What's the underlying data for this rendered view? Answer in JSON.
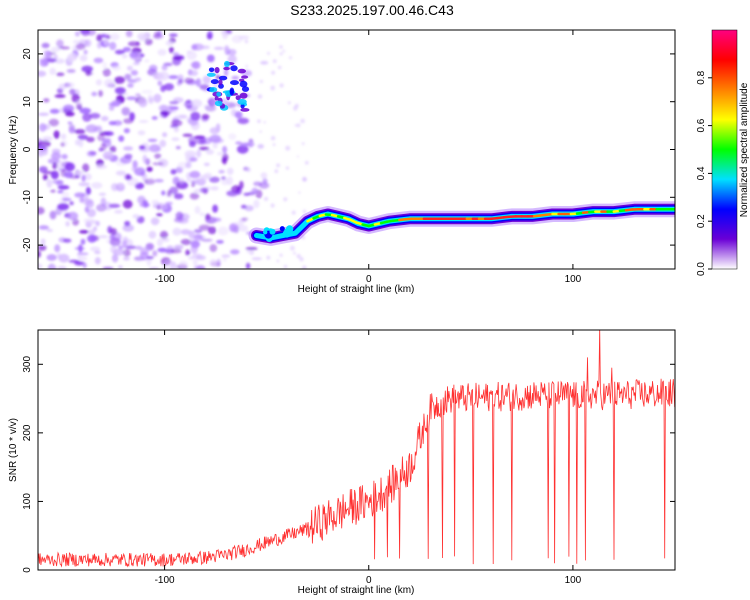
{
  "title": "S233.2025.197.00.46.C43",
  "chart_data": [
    {
      "type": "heatmap",
      "xlabel": "Height of straight line (km)",
      "ylabel": "Frequency (Hz)",
      "xlim": [
        -162,
        150
      ],
      "ylim": [
        -25,
        25
      ],
      "xticks": [
        "-100",
        "0",
        "100"
      ],
      "yticks": [
        "20",
        "10",
        "0",
        "-10",
        "-20"
      ],
      "colorbar": {
        "label": "Normalized spectral amplitude",
        "range": [
          0,
          1
        ],
        "ticks": [
          "0.0",
          "0.2",
          "0.4",
          "0.6",
          "0.8"
        ],
        "colors": [
          "#ffffff",
          "#6a00d6",
          "#0000ff",
          "#00e0ff",
          "#00ff00",
          "#ffff00",
          "#ff8000",
          "#ff0000",
          "#ff0080"
        ]
      },
      "ridge": {
        "x": [
          -55,
          -48,
          -42,
          -36,
          -30,
          -25,
          -20,
          -15,
          -10,
          -5,
          0,
          5,
          10,
          20,
          30,
          40,
          50,
          60,
          70,
          80,
          90,
          100,
          110,
          120,
          130,
          140,
          150
        ],
        "freq": [
          -18,
          -18.5,
          -18,
          -17.5,
          -15,
          -14,
          -13.5,
          -14,
          -14.5,
          -15.5,
          -16,
          -15.5,
          -15,
          -14.5,
          -14.5,
          -14.5,
          -14.5,
          -14.5,
          -14,
          -14,
          -13.5,
          -13.5,
          -13,
          -13,
          -12.5,
          -12.5,
          -12.5
        ]
      },
      "blob": {
        "x": [
          -78,
          -60
        ],
        "freq": [
          8,
          18
        ]
      },
      "noise_region_x": [
        -162,
        -50
      ]
    },
    {
      "type": "line",
      "xlabel": "Height of straight line (km)",
      "ylabel": "SNR (10 * v/v)",
      "xlim": [
        -162,
        150
      ],
      "ylim": [
        0,
        350
      ],
      "xticks": [
        "-100",
        "0",
        "100"
      ],
      "yticks": [
        "0",
        "100",
        "200",
        "300"
      ],
      "color": "#ff3030",
      "trend": {
        "x": [
          -162,
          -130,
          -100,
          -80,
          -70,
          -60,
          -50,
          -40,
          -30,
          -20,
          -10,
          0,
          10,
          20,
          25,
          30,
          40,
          60,
          80,
          100,
          120,
          150
        ],
        "y": [
          15,
          15,
          15,
          18,
          22,
          30,
          40,
          50,
          60,
          75,
          90,
          100,
          120,
          150,
          190,
          235,
          250,
          252,
          255,
          255,
          255,
          258
        ]
      },
      "dips_x": [
        3,
        9,
        15,
        29,
        36,
        42,
        51,
        61,
        70,
        88,
        91,
        98,
        102,
        106,
        120,
        145
      ],
      "spikes": [
        {
          "x": 113,
          "y": 355
        },
        {
          "x": 107,
          "y": 310
        },
        {
          "x": 119,
          "y": 295
        }
      ]
    }
  ]
}
